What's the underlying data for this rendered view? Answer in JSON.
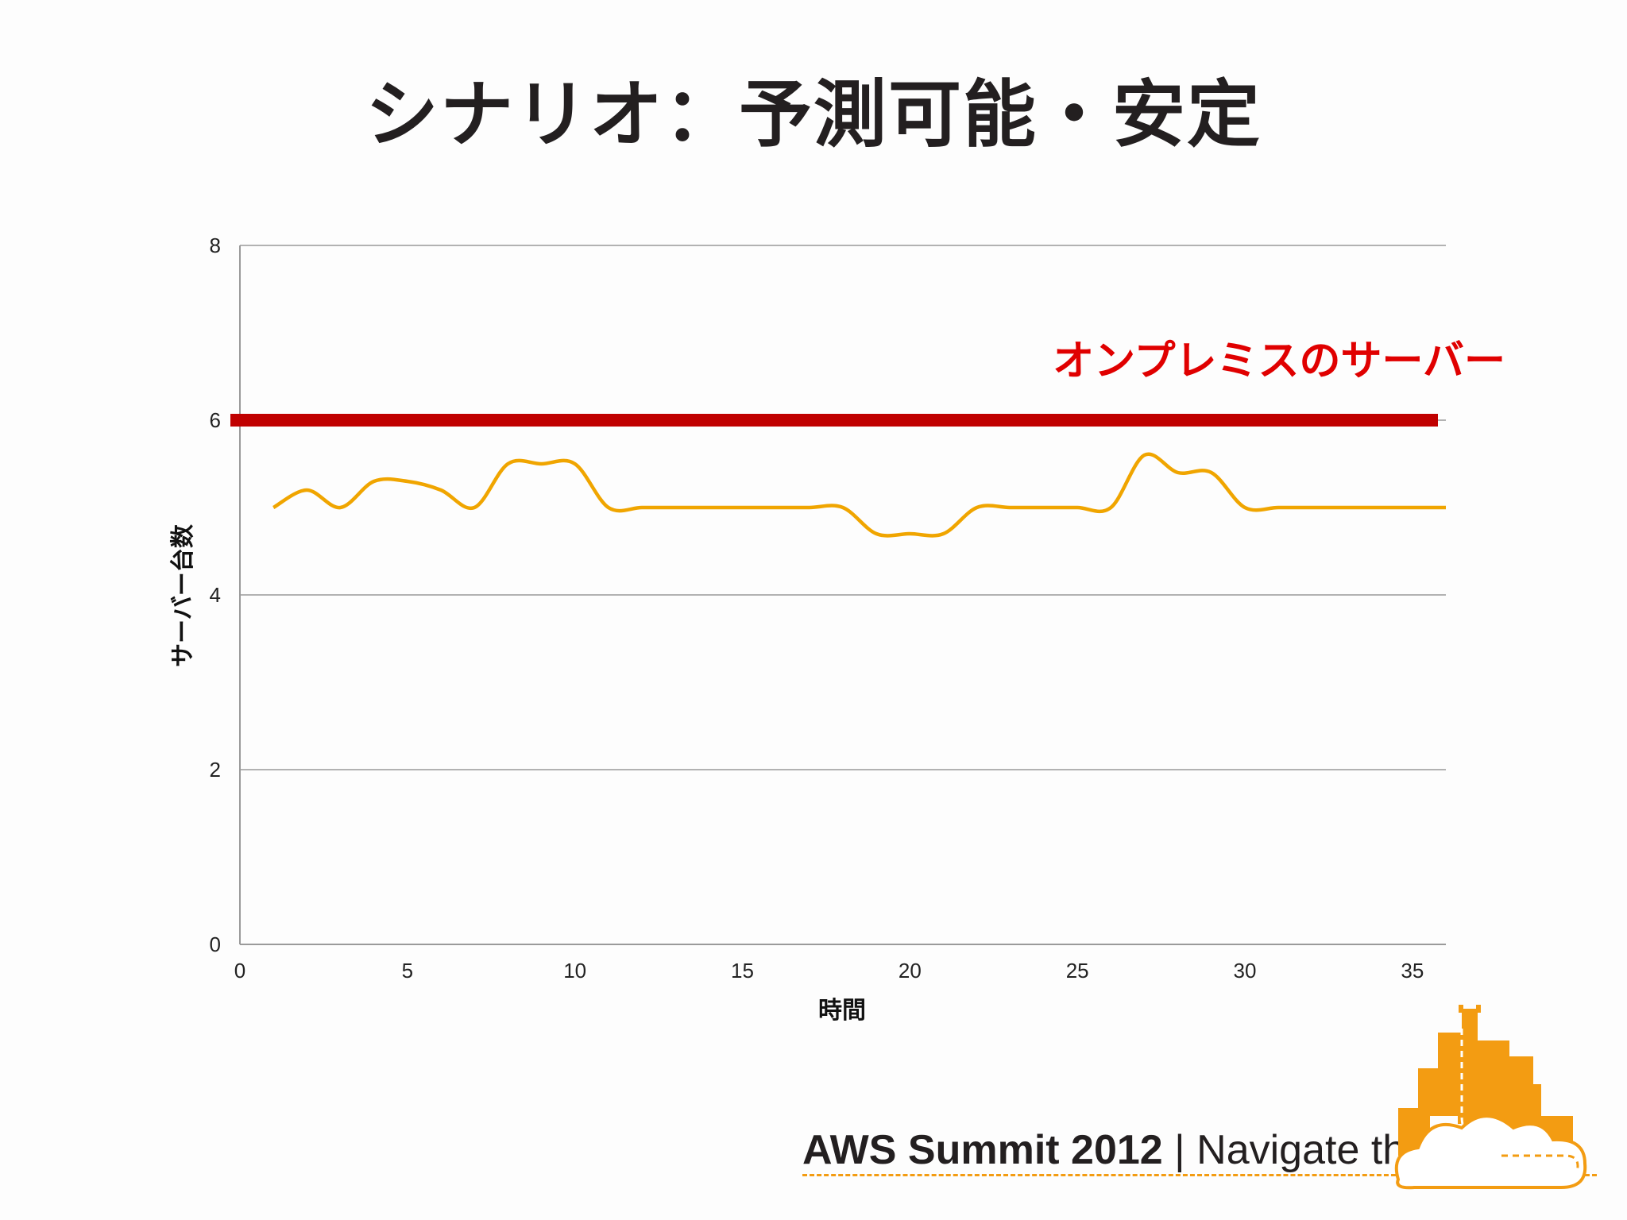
{
  "title": "シナリオ：予測可能・安定",
  "chart_data": {
    "type": "line",
    "xlabel": "時間",
    "ylabel": "サーバー台数",
    "xlim": [
      0,
      36
    ],
    "ylim": [
      0,
      8
    ],
    "xticks": [
      0,
      5,
      10,
      15,
      20,
      25,
      30,
      35
    ],
    "yticks": [
      0,
      2,
      4,
      6,
      8
    ],
    "grid": "horizontal",
    "series": [
      {
        "color": "#f0a500",
        "x": [
          1,
          2,
          3,
          4,
          5,
          6,
          7,
          8,
          9,
          10,
          11,
          12,
          13,
          14,
          15,
          16,
          17,
          18,
          19,
          20,
          21,
          22,
          23,
          24,
          25,
          26,
          27,
          28,
          29,
          30,
          31,
          32,
          33,
          34,
          35,
          36
        ],
        "values": [
          5.0,
          5.2,
          5.0,
          5.3,
          5.3,
          5.2,
          5.0,
          5.5,
          5.5,
          5.5,
          5.0,
          5.0,
          5.0,
          5.0,
          5.0,
          5.0,
          5.0,
          5.0,
          4.7,
          4.7,
          4.7,
          5.0,
          5.0,
          5.0,
          5.0,
          5.0,
          5.6,
          5.4,
          5.4,
          5.0,
          5.0,
          5.0,
          5.0,
          5.0,
          5.0,
          5.0
        ]
      }
    ],
    "reference_line": {
      "label": "オンプレミスのサーバー",
      "value": 6,
      "color": "#c00000"
    }
  },
  "footer": {
    "brand": "AWS Summit 2012",
    "separator": "|",
    "tagline": "Navigate the Cloud",
    "accent_color": "#f39c12"
  }
}
